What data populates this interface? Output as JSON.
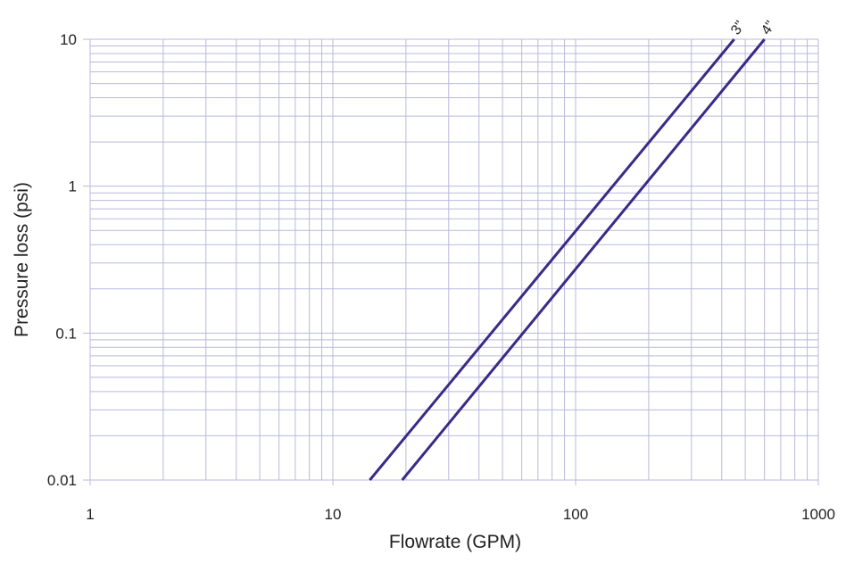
{
  "chart_data": {
    "type": "line",
    "xlabel": "Flowrate (GPM)",
    "ylabel": "Pressure loss (psi)",
    "x_scale": "log",
    "y_scale": "log",
    "xlim": [
      1,
      1000
    ],
    "ylim": [
      0.01,
      10
    ],
    "x_ticks": [
      1,
      10,
      100,
      1000
    ],
    "x_tick_labels": [
      "1",
      "10",
      "100",
      "1000"
    ],
    "y_ticks": [
      0.01,
      0.1,
      1,
      10
    ],
    "y_tick_labels": [
      "0.01",
      "0.1",
      "1",
      "10"
    ],
    "grid": true,
    "legend": "none",
    "series": [
      {
        "name": "3\"",
        "x": [
          14.2,
          450
        ],
        "y": [
          0.01,
          10
        ]
      },
      {
        "name": "4\"",
        "x": [
          19.3,
          600
        ],
        "y": [
          0.01,
          10
        ]
      }
    ],
    "colors": {
      "grid": "#b9b9dd",
      "line": "#3b2a86",
      "text": "#222222"
    }
  }
}
